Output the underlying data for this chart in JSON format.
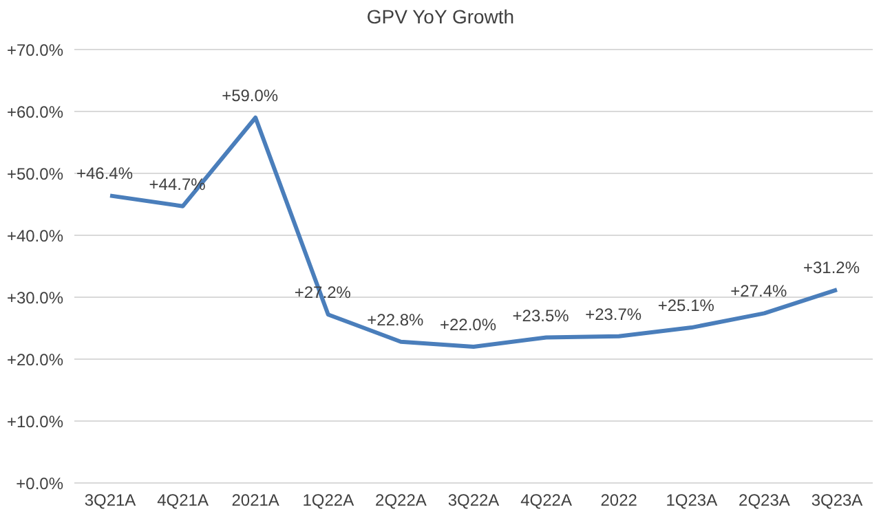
{
  "chart_data": {
    "type": "line",
    "title": "GPV YoY Growth",
    "categories": [
      "3Q21A",
      "4Q21A",
      "2021A",
      "1Q22A",
      "2Q22A",
      "3Q22A",
      "4Q22A",
      "2022",
      "1Q23A",
      "2Q23A",
      "3Q23A"
    ],
    "series": [
      {
        "color": "#4a7ebb",
        "values": [
          46.4,
          44.7,
          59.0,
          27.2,
          22.8,
          22.0,
          23.5,
          23.7,
          25.1,
          27.4,
          31.2
        ],
        "value_labels": [
          "+46.4%",
          "+44.7%",
          "+59.0%",
          "+27.2%",
          "+22.8%",
          "+22.0%",
          "+23.5%",
          "+23.7%",
          "+25.1%",
          "+27.4%",
          "+31.2%"
        ]
      }
    ],
    "ylim": [
      0,
      70
    ],
    "yticks": [
      {
        "value": 0,
        "label": "+0.0%"
      },
      {
        "value": 10,
        "label": "+10.0%"
      },
      {
        "value": 20,
        "label": "+20.0%"
      },
      {
        "value": 30,
        "label": "+30.0%"
      },
      {
        "value": 40,
        "label": "+40.0%"
      },
      {
        "value": 50,
        "label": "+50.0%"
      },
      {
        "value": 60,
        "label": "+60.0%"
      },
      {
        "value": 70,
        "label": "+70.0%"
      }
    ],
    "grid": "y",
    "marker": "none",
    "line_style": "solid"
  }
}
